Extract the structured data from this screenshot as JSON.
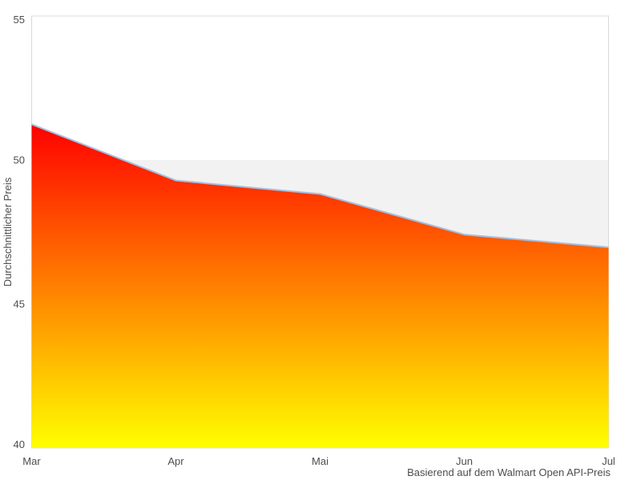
{
  "chart_data": {
    "type": "area",
    "categories": [
      "Mar",
      "Apr",
      "Mai",
      "Jun",
      "Jul"
    ],
    "values": [
      51.24,
      49.29,
      48.82,
      47.41,
      46.97
    ],
    "series": [
      {
        "name": "Durchschnittlicher Preis",
        "values": [
          51.24,
          49.29,
          48.82,
          47.41,
          46.97
        ]
      }
    ],
    "title": "",
    "xlabel": "",
    "ylabel": "Durchschnittlicher Preis",
    "caption": "Basierend auf dem Walmart Open API-Preis",
    "ylim": [
      40,
      55
    ],
    "yticks": [
      40,
      45,
      50,
      55
    ],
    "ytick_labels": [
      "40",
      "45",
      "50",
      "55"
    ],
    "grid": false,
    "legend": "none",
    "band": {
      "from": 40,
      "to": 50,
      "color": "#f2f2f2"
    },
    "colors": {
      "gradient_top": "#ff0000",
      "gradient_bottom": "#ffff00",
      "line": "#a6bedd",
      "plot_border": "#d9d9d9",
      "text": "#4d4d4d",
      "background": "#ffffff"
    }
  }
}
